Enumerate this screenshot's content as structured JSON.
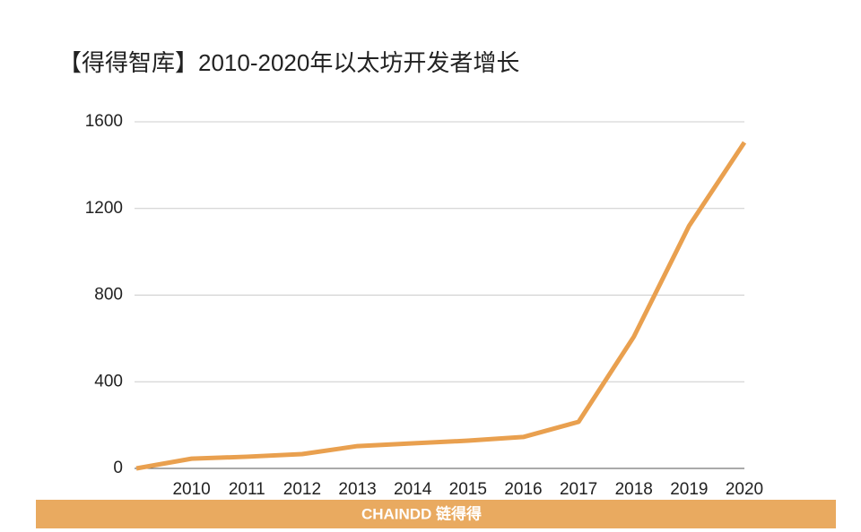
{
  "chart_data": {
    "type": "line",
    "title": "【得得智库】2010-2020年以太坊开发者增长",
    "categories": [
      null,
      "2010",
      "2011",
      "2012",
      "2013",
      "2014",
      "2015",
      "2016",
      "2017",
      "2018",
      "2019",
      "2020"
    ],
    "series": [
      {
        "name": "以太坊开发者",
        "color": "#e9a04f",
        "values": [
          0,
          45,
          54,
          66,
          103,
          116,
          128,
          145,
          215,
          608,
          1120,
          1505
        ]
      }
    ],
    "ylim": [
      0,
      1600
    ],
    "yticks": [
      0,
      400,
      800,
      1200,
      1600
    ],
    "grid": true
  },
  "footer": "CHAINDD 链得得"
}
